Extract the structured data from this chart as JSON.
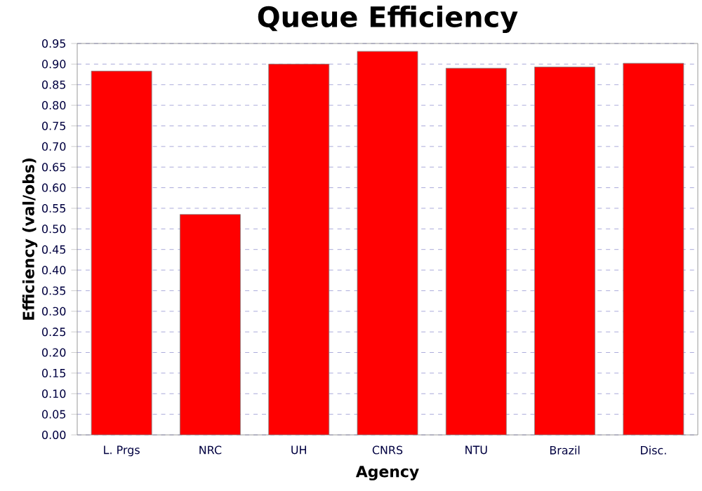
{
  "chart_data": {
    "type": "bar",
    "title": "Queue Efficiency",
    "xlabel": "Agency",
    "ylabel": "Efficiency (val/obs)",
    "categories": [
      "L. Prgs",
      "NRC",
      "UH",
      "CNRS",
      "NTU",
      "Brazil",
      "Disc."
    ],
    "values": [
      0.883,
      0.535,
      0.9,
      0.931,
      0.89,
      0.893,
      0.902
    ],
    "color": "#ff0000",
    "ylim": [
      0,
      0.95
    ],
    "yticks": [
      {
        "value": 0,
        "label": "0.00"
      },
      {
        "value": 0.05,
        "label": "0.05"
      },
      {
        "value": 0.1,
        "label": "0.10"
      },
      {
        "value": 0.15,
        "label": "0.15"
      },
      {
        "value": 0.2,
        "label": "0.20"
      },
      {
        "value": 0.25,
        "label": "0.25"
      },
      {
        "value": 0.3,
        "label": "0.30"
      },
      {
        "value": 0.35,
        "label": "0.35"
      },
      {
        "value": 0.4,
        "label": "0.40"
      },
      {
        "value": 0.45,
        "label": "0.45"
      },
      {
        "value": 0.5,
        "label": "0.50"
      },
      {
        "value": 0.55,
        "label": "0.55"
      },
      {
        "value": 0.6,
        "label": "0.60"
      },
      {
        "value": 0.65,
        "label": "0.65"
      },
      {
        "value": 0.7,
        "label": "0.70"
      },
      {
        "value": 0.75,
        "label": "0.75"
      },
      {
        "value": 0.8,
        "label": "0.80"
      },
      {
        "value": 0.85,
        "label": "0.85"
      },
      {
        "value": 0.9,
        "label": "0.90"
      },
      {
        "value": 0.95,
        "label": "0.95"
      }
    ],
    "grid": "y"
  }
}
